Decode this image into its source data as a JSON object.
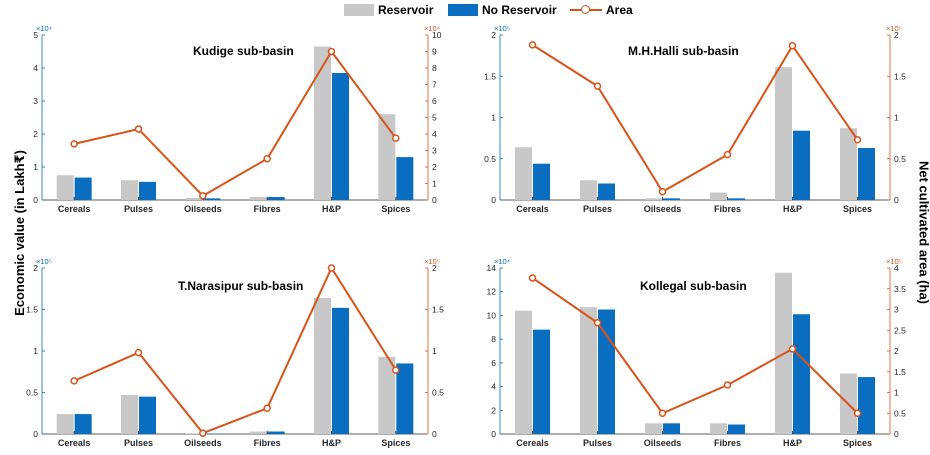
{
  "legend": {
    "reservoir": "Reservoir",
    "no_reservoir": "No Reservoir",
    "area": "Area"
  },
  "ylabel_left": "Economic value (in Lakh₹)",
  "ylabel_right": "Net cultivated area (ha)",
  "colors": {
    "reservoir": "#c8c8c8",
    "no_reservoir": "#0a6ec0",
    "area": "#d95319",
    "left_axis": "#0072bd",
    "right_axis": "#d95319"
  },
  "chart_data": [
    {
      "type": "bar",
      "title": "Kudige sub-basin",
      "categories": [
        "Cereals",
        "Pulses",
        "Oilseeds",
        "Fibres",
        "H&P",
        "Spices"
      ],
      "series": [
        {
          "name": "Reservoir",
          "values": [
            7500,
            6000,
            600,
            900,
            46500,
            26000
          ]
        },
        {
          "name": "No Reservoir",
          "values": [
            6800,
            5500,
            500,
            900,
            38500,
            13000
          ]
        }
      ],
      "line": {
        "name": "Area",
        "values": [
          34000,
          43000,
          2500,
          25000,
          90000,
          37500
        ]
      },
      "ylim": [
        0,
        50000
      ],
      "yticks": [
        "0",
        "1",
        "2",
        "3",
        "4",
        "5"
      ],
      "y_exponent": "×10⁴",
      "y2lim": [
        0,
        100000
      ],
      "y2ticks": [
        "0",
        "1",
        "2",
        "3",
        "4",
        "5",
        "6",
        "7",
        "8",
        "9",
        "10"
      ],
      "y2_exponent": "×10⁴"
    },
    {
      "type": "bar",
      "title": "M.H.Halli sub-basin",
      "categories": [
        "Cereals",
        "Pulses",
        "Oilseeds",
        "Fibres",
        "H&P",
        "Spices"
      ],
      "series": [
        {
          "name": "Reservoir",
          "values": [
            64000,
            24000,
            2000,
            9000,
            161000,
            87000
          ]
        },
        {
          "name": "No Reservoir",
          "values": [
            44000,
            20000,
            2000,
            2000,
            84000,
            63000
          ]
        }
      ],
      "line": {
        "name": "Area",
        "values": [
          188000,
          138000,
          10000,
          55000,
          187000,
          73000
        ]
      },
      "ylim": [
        0,
        200000
      ],
      "yticks": [
        "0",
        "0.5",
        "1",
        "1.5",
        "2"
      ],
      "y_exponent": "×10⁵",
      "y2lim": [
        0,
        200000
      ],
      "y2ticks": [
        "0",
        "0.5",
        "1",
        "1.5",
        "2"
      ],
      "y2_exponent": "×10⁵"
    },
    {
      "type": "bar",
      "title": "T.Narasipur sub-basin",
      "categories": [
        "Cereals",
        "Pulses",
        "Oilseeds",
        "Fibres",
        "H&P",
        "Spices"
      ],
      "series": [
        {
          "name": "Reservoir",
          "values": [
            24000,
            47000,
            500,
            3000,
            164000,
            93000
          ]
        },
        {
          "name": "No Reservoir",
          "values": [
            24000,
            45000,
            500,
            3000,
            152000,
            85000
          ]
        }
      ],
      "line": {
        "name": "Area",
        "values": [
          64000,
          98000,
          1000,
          31000,
          200000,
          77000
        ]
      },
      "ylim": [
        0,
        200000
      ],
      "yticks": [
        "0",
        "0.5",
        "1",
        "1.5",
        "2"
      ],
      "y_exponent": "×10⁵",
      "y2lim": [
        0,
        200000
      ],
      "y2ticks": [
        "0",
        "0.5",
        "1",
        "1.5",
        "2"
      ],
      "y2_exponent": "×10⁵"
    },
    {
      "type": "bar",
      "title": "Kollegal sub-basin",
      "categories": [
        "Cereals",
        "Pulses",
        "Oilseeds",
        "Fibres",
        "H&P",
        "Spices"
      ],
      "series": [
        {
          "name": "Reservoir",
          "values": [
            104000,
            107000,
            9000,
            9000,
            136000,
            51000
          ]
        },
        {
          "name": "No Reservoir",
          "values": [
            88000,
            105000,
            9000,
            8000,
            101000,
            48000
          ]
        }
      ],
      "line": {
        "name": "Area",
        "values": [
          376000,
          268000,
          50000,
          118000,
          205000,
          50000
        ]
      },
      "ylim": [
        0,
        140000
      ],
      "yticks": [
        "0",
        "2",
        "4",
        "6",
        "8",
        "10",
        "12",
        "14"
      ],
      "y_exponent": "×10⁴",
      "y2lim": [
        0,
        400000
      ],
      "y2ticks": [
        "0",
        "0.5",
        "1",
        "1.5",
        "2",
        "2.5",
        "3",
        "3.5",
        "4"
      ],
      "y2_exponent": "×10⁵"
    }
  ]
}
